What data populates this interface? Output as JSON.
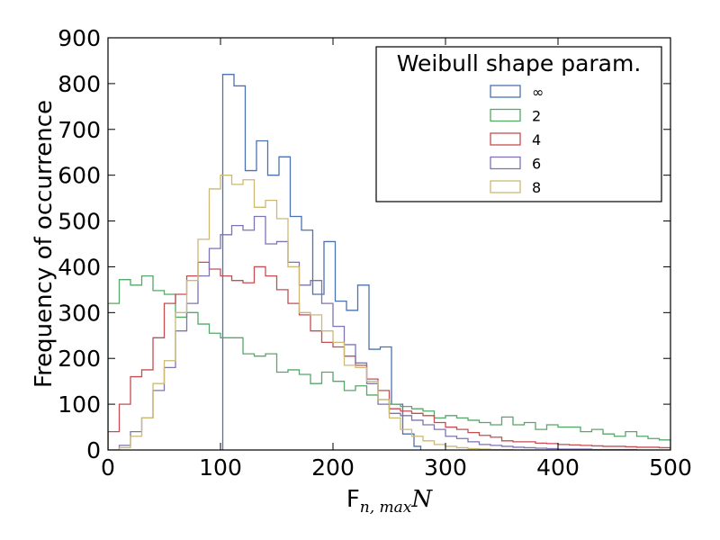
{
  "chart_data": {
    "type": "histogram",
    "xlabel": {
      "main": "F",
      "sub": "n, max",
      "tail": "N"
    },
    "ylabel": "Frequency of occurrence",
    "xlim": [
      0,
      500
    ],
    "ylim": [
      0,
      900
    ],
    "xticks": [
      0,
      100,
      200,
      300,
      400,
      500
    ],
    "yticks": [
      0,
      100,
      200,
      300,
      400,
      500,
      600,
      700,
      800,
      900
    ],
    "grid": false,
    "legend": {
      "title": "Weibull shape param.",
      "position": "top-right"
    },
    "series": [
      {
        "name": "∞",
        "color": "#4c72b0",
        "edges": [
          102,
          112,
          122,
          132,
          142,
          152,
          162,
          172,
          182,
          192,
          202,
          212,
          222,
          232,
          242,
          252,
          262,
          272,
          278
        ],
        "values": [
          820,
          795,
          610,
          675,
          600,
          640,
          510,
          480,
          340,
          455,
          325,
          305,
          360,
          220,
          225,
          100,
          35,
          8
        ]
      },
      {
        "name": "2",
        "color": "#55a868",
        "edges": [
          0,
          10,
          20,
          30,
          40,
          50,
          60,
          70,
          80,
          90,
          100,
          110,
          120,
          130,
          140,
          150,
          160,
          170,
          180,
          190,
          200,
          210,
          220,
          230,
          240,
          250,
          260,
          270,
          280,
          290,
          300,
          310,
          320,
          330,
          340,
          350,
          360,
          370,
          380,
          390,
          400,
          410,
          420,
          430,
          440,
          450,
          460,
          470,
          480,
          490,
          500
        ],
        "values": [
          320,
          372,
          360,
          380,
          348,
          340,
          290,
          300,
          275,
          255,
          245,
          245,
          210,
          205,
          210,
          170,
          175,
          165,
          145,
          170,
          150,
          130,
          140,
          120,
          110,
          100,
          95,
          90,
          85,
          70,
          75,
          70,
          65,
          60,
          55,
          72,
          55,
          60,
          45,
          55,
          50,
          50,
          40,
          45,
          35,
          30,
          40,
          30,
          25,
          22
        ]
      },
      {
        "name": "4",
        "color": "#c44e52",
        "edges": [
          0,
          10,
          20,
          30,
          40,
          50,
          60,
          70,
          80,
          90,
          100,
          110,
          120,
          130,
          140,
          150,
          160,
          170,
          180,
          190,
          200,
          210,
          220,
          230,
          240,
          250,
          260,
          270,
          280,
          290,
          300,
          310,
          320,
          330,
          340,
          350,
          360,
          370,
          380,
          390,
          400,
          410,
          420,
          430,
          440,
          450,
          460,
          470,
          480,
          490,
          500
        ],
        "values": [
          40,
          100,
          160,
          175,
          245,
          320,
          340,
          380,
          410,
          395,
          380,
          370,
          365,
          400,
          380,
          350,
          320,
          295,
          260,
          235,
          225,
          205,
          185,
          155,
          130,
          90,
          85,
          80,
          75,
          60,
          50,
          45,
          38,
          32,
          28,
          20,
          18,
          18,
          15,
          14,
          12,
          11,
          10,
          9,
          8,
          8,
          7,
          6,
          6,
          5
        ]
      },
      {
        "name": "6",
        "color": "#8172b2",
        "edges": [
          0,
          10,
          20,
          30,
          40,
          50,
          60,
          70,
          80,
          90,
          100,
          110,
          120,
          130,
          140,
          150,
          160,
          170,
          180,
          190,
          200,
          210,
          220,
          230,
          240,
          250,
          260,
          270,
          280,
          290,
          300,
          310,
          320,
          330,
          340,
          350,
          360,
          370,
          380,
          390,
          400,
          410,
          420,
          430,
          440,
          450,
          460,
          470,
          480,
          490,
          500
        ],
        "values": [
          0,
          10,
          40,
          70,
          130,
          180,
          260,
          320,
          380,
          440,
          470,
          490,
          480,
          510,
          450,
          455,
          410,
          360,
          370,
          320,
          270,
          230,
          190,
          145,
          100,
          80,
          75,
          65,
          55,
          45,
          30,
          25,
          18,
          12,
          10,
          8,
          6,
          5,
          4,
          3,
          2,
          2,
          2,
          1,
          1,
          1,
          1,
          0,
          0,
          0
        ]
      },
      {
        "name": "8",
        "color": "#ccb974",
        "edges": [
          0,
          10,
          20,
          30,
          40,
          50,
          60,
          70,
          80,
          90,
          100,
          110,
          120,
          130,
          140,
          150,
          160,
          170,
          180,
          190,
          200,
          210,
          220,
          230,
          240,
          250,
          260,
          270,
          280,
          290,
          300,
          310,
          320,
          330,
          340,
          350,
          360,
          370,
          380,
          390,
          400,
          410,
          420,
          430,
          440,
          450,
          460,
          470,
          480,
          490,
          500
        ],
        "values": [
          0,
          5,
          30,
          70,
          145,
          195,
          300,
          370,
          460,
          570,
          600,
          580,
          590,
          530,
          545,
          505,
          400,
          300,
          295,
          260,
          235,
          185,
          180,
          150,
          110,
          70,
          45,
          30,
          20,
          12,
          8,
          5,
          3,
          2,
          1,
          1,
          0,
          0,
          0,
          0,
          0,
          0,
          0,
          0,
          0,
          0,
          0,
          0,
          0,
          0
        ]
      }
    ]
  }
}
